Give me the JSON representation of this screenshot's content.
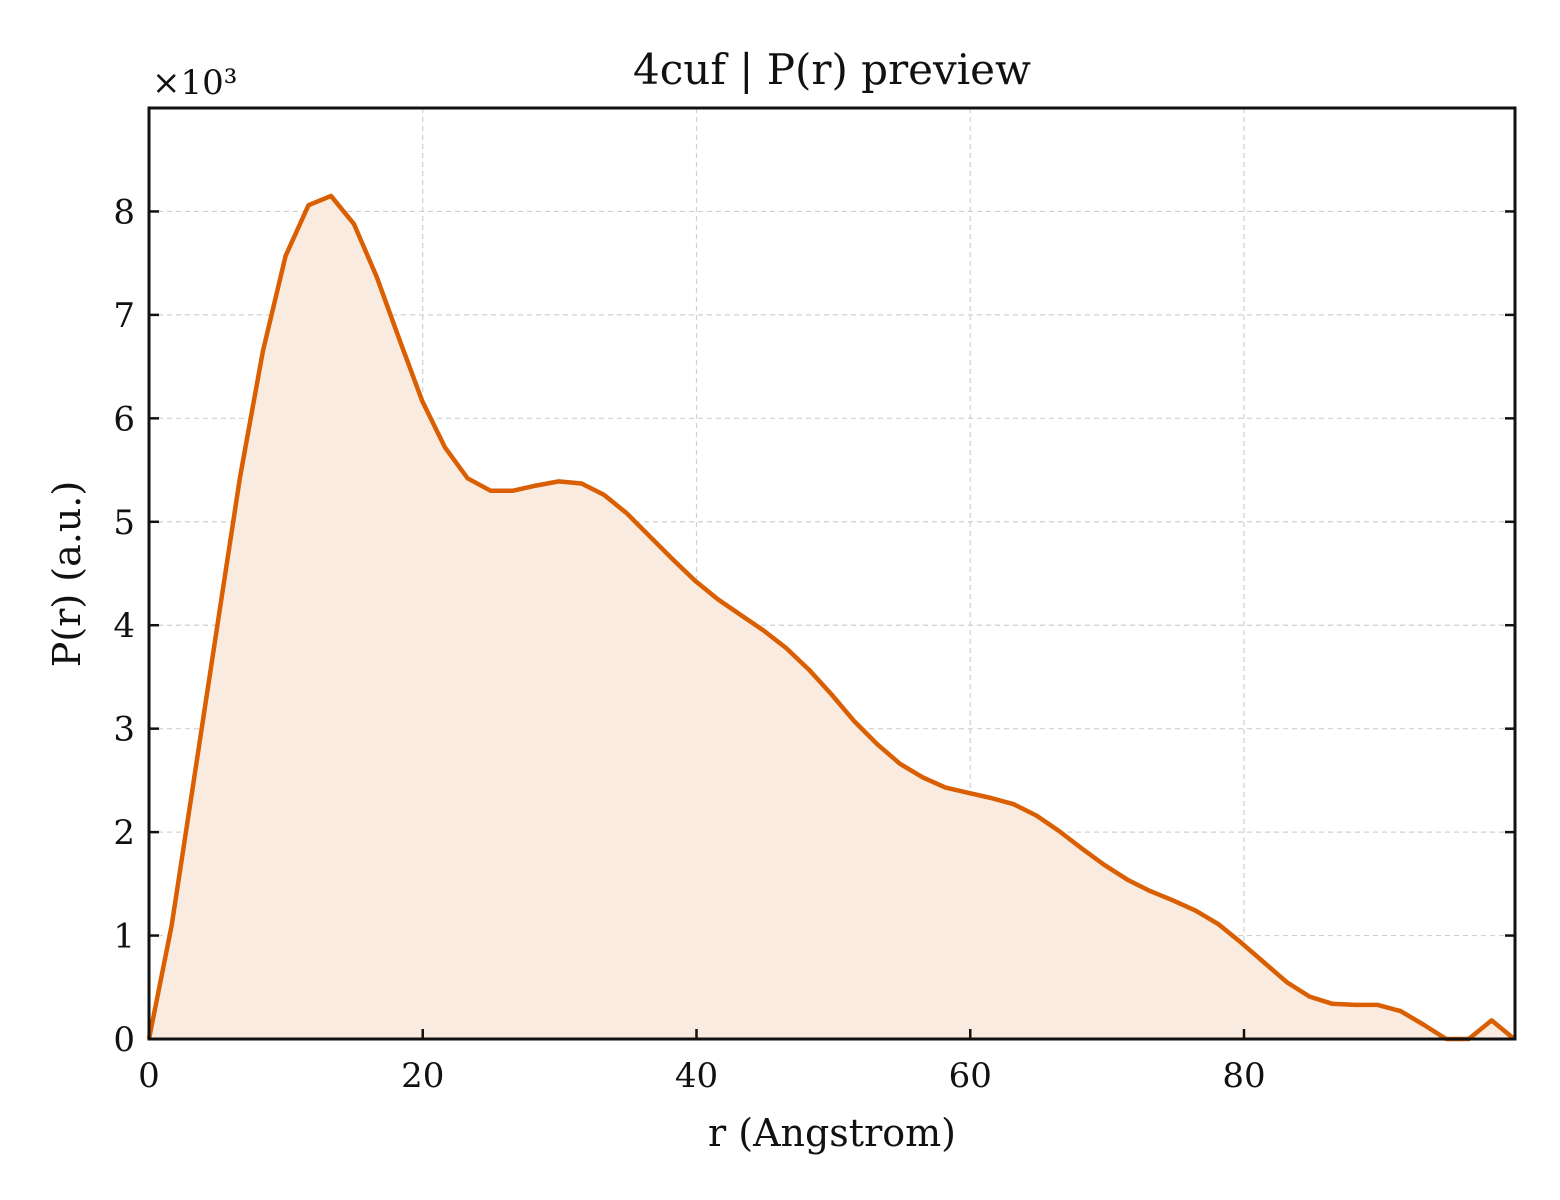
{
  "chart_data": {
    "type": "area",
    "title": "4cuf | P(r) preview",
    "xlabel": "r (Angstrom)",
    "ylabel": "P(r) (a.u.)",
    "y_multiplier": "×10³",
    "xlim": [
      0,
      99.8
    ],
    "ylim": [
      0,
      9000
    ],
    "x_ticks": [
      0,
      20,
      40,
      60,
      80
    ],
    "x_tick_labels": [
      "0",
      "20",
      "40",
      "60",
      "80"
    ],
    "y_ticks": [
      0,
      1000,
      2000,
      3000,
      4000,
      5000,
      6000,
      7000,
      8000
    ],
    "y_tick_labels": [
      "0",
      "1",
      "2",
      "3",
      "4",
      "5",
      "6",
      "7",
      "8"
    ],
    "grid": true,
    "line_color": "#d95f02",
    "fill_color": "#f9ebe0",
    "x": [
      0,
      1.66,
      3.33,
      5.0,
      6.65,
      8.32,
      9.98,
      11.65,
      13.3,
      14.97,
      16.63,
      18.3,
      19.95,
      21.62,
      23.28,
      24.95,
      26.6,
      28.27,
      29.93,
      31.6,
      33.25,
      34.92,
      36.58,
      38.24,
      39.9,
      41.57,
      43.22,
      44.89,
      46.55,
      48.22,
      49.87,
      51.54,
      53.2,
      54.87,
      56.52,
      58.19,
      59.85,
      61.52,
      63.17,
      64.84,
      66.5,
      68.17,
      69.82,
      71.49,
      73.15,
      74.82,
      76.47,
      78.14,
      79.8,
      81.47,
      83.12,
      84.79,
      86.45,
      88.12,
      89.77,
      91.44,
      93.1,
      94.77,
      96.42,
      98.09,
      99.75
    ],
    "y": [
      0,
      1100,
      2550,
      4000,
      5430,
      6650,
      7570,
      8060,
      8150,
      7880,
      7370,
      6760,
      6170,
      5720,
      5420,
      5300,
      5300,
      5350,
      5390,
      5370,
      5260,
      5080,
      4860,
      4640,
      4430,
      4250,
      4100,
      3950,
      3780,
      3570,
      3330,
      3070,
      2850,
      2660,
      2530,
      2430,
      2380,
      2330,
      2270,
      2160,
      2010,
      1840,
      1680,
      1540,
      1430,
      1340,
      1240,
      1110,
      930,
      740,
      550,
      410,
      340,
      330,
      330,
      270,
      140,
      0,
      0,
      180,
      0
    ]
  }
}
